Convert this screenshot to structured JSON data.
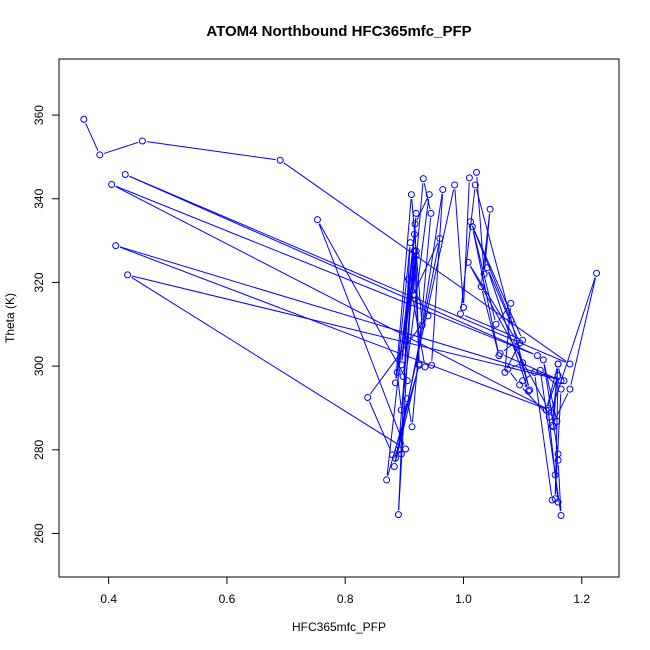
{
  "chart_data": {
    "type": "line",
    "title": "ATOM4 Northbound HFC365mfc_PFP",
    "xlabel": "HFC365mfc_PFP",
    "ylabel": "Theta (K)",
    "xlim": [
      0.316,
      1.263
    ],
    "ylim": [
      249.6,
      373.4
    ],
    "xticks": [
      0.4,
      0.6,
      0.8,
      1.0,
      1.2
    ],
    "xtick_labels": [
      "0.4",
      "0.6",
      "0.8",
      "1.0",
      "1.2"
    ],
    "yticks": [
      260,
      280,
      300,
      320,
      340,
      360
    ],
    "ytick_labels": [
      "260",
      "280",
      "300",
      "320",
      "340",
      "360"
    ],
    "grid": false,
    "legend": "none",
    "colors": {
      "series": "#0000ff",
      "axis": "#000000",
      "background": "#ffffff"
    },
    "series": [
      {
        "marker": "open-circle",
        "x": [
          0.358,
          0.385,
          0.457,
          0.69,
          1.18,
          0.428,
          1.125,
          0.405,
          1.145,
          0.412,
          1.17,
          0.432,
          0.902,
          0.753,
          0.905,
          0.898,
          0.92,
          0.885,
          0.912,
          0.93,
          0.965,
          0.946,
          0.935,
          0.912,
          0.92,
          0.895,
          0.92,
          0.901,
          0.91,
          0.888,
          0.895,
          0.942,
          0.918,
          0.925,
          0.883,
          0.905,
          0.913,
          0.945,
          0.932,
          0.915,
          0.96,
          0.89,
          0.917,
          0.925,
          0.87,
          0.917,
          0.89,
          0.907,
          0.94,
          0.838,
          0.88,
          0.895,
          0.885,
          0.985,
          1.0,
          1.01,
          1.022,
          1.035,
          1.045,
          1.03,
          1.06,
          1.015,
          1.055,
          1.08,
          1.07,
          1.095,
          1.04,
          1.11,
          1.1,
          1.12,
          1.15,
          1.16,
          1.143,
          1.008,
          1.09,
          1.062,
          1.165,
          1.16,
          1.152,
          1.158,
          1.135,
          1.16,
          1.155,
          1.16,
          1.165,
          1.13,
          1.165,
          1.155,
          1.16,
          1.14,
          1.16,
          1.15,
          1.18,
          1.225,
          1.145,
          1.095,
          1.075,
          1.1,
          1.09,
          1.112,
          1.02,
          0.995,
          1.1,
          1.012,
          1.08
        ],
        "y": [
          359,
          350.5,
          353.8,
          349.2,
          300.5,
          345.8,
          302.5,
          343.4,
          289.5,
          328.8,
          296.5,
          321.8,
          280.2,
          335,
          296.5,
          297.5,
          326.4,
          296,
          341,
          309.8,
          342.2,
          300.2,
          299.8,
          318,
          327.5,
          300.3,
          336.5,
          306,
          329.5,
          298.5,
          289.5,
          341,
          334,
          300.5,
          276,
          292.2,
          285.5,
          336.5,
          344.8,
          317,
          330.5,
          280,
          327.5,
          300.2,
          272.8,
          331.5,
          264.5,
          320.8,
          312,
          292.5,
          278.8,
          279,
          278,
          343.3,
          314,
          345,
          346.3,
          322,
          337.5,
          319,
          302.5,
          333.3,
          310,
          315,
          298.5,
          305.5,
          323.5,
          294,
          296.5,
          298.5,
          268,
          267.5,
          290,
          324.8,
          306,
          303,
          296.5,
          300.5,
          285.5,
          286.8,
          301.5,
          279,
          274,
          277.5,
          264.3,
          299,
          294.5,
          268.3,
          297.8,
          289.5,
          300.5,
          285.8,
          294.5,
          322.2,
          287.8,
          295.5,
          299.3,
          300.8,
          304.5,
          294.3,
          343.3,
          312.5,
          306.2,
          334.5,
          311
        ]
      }
    ]
  }
}
